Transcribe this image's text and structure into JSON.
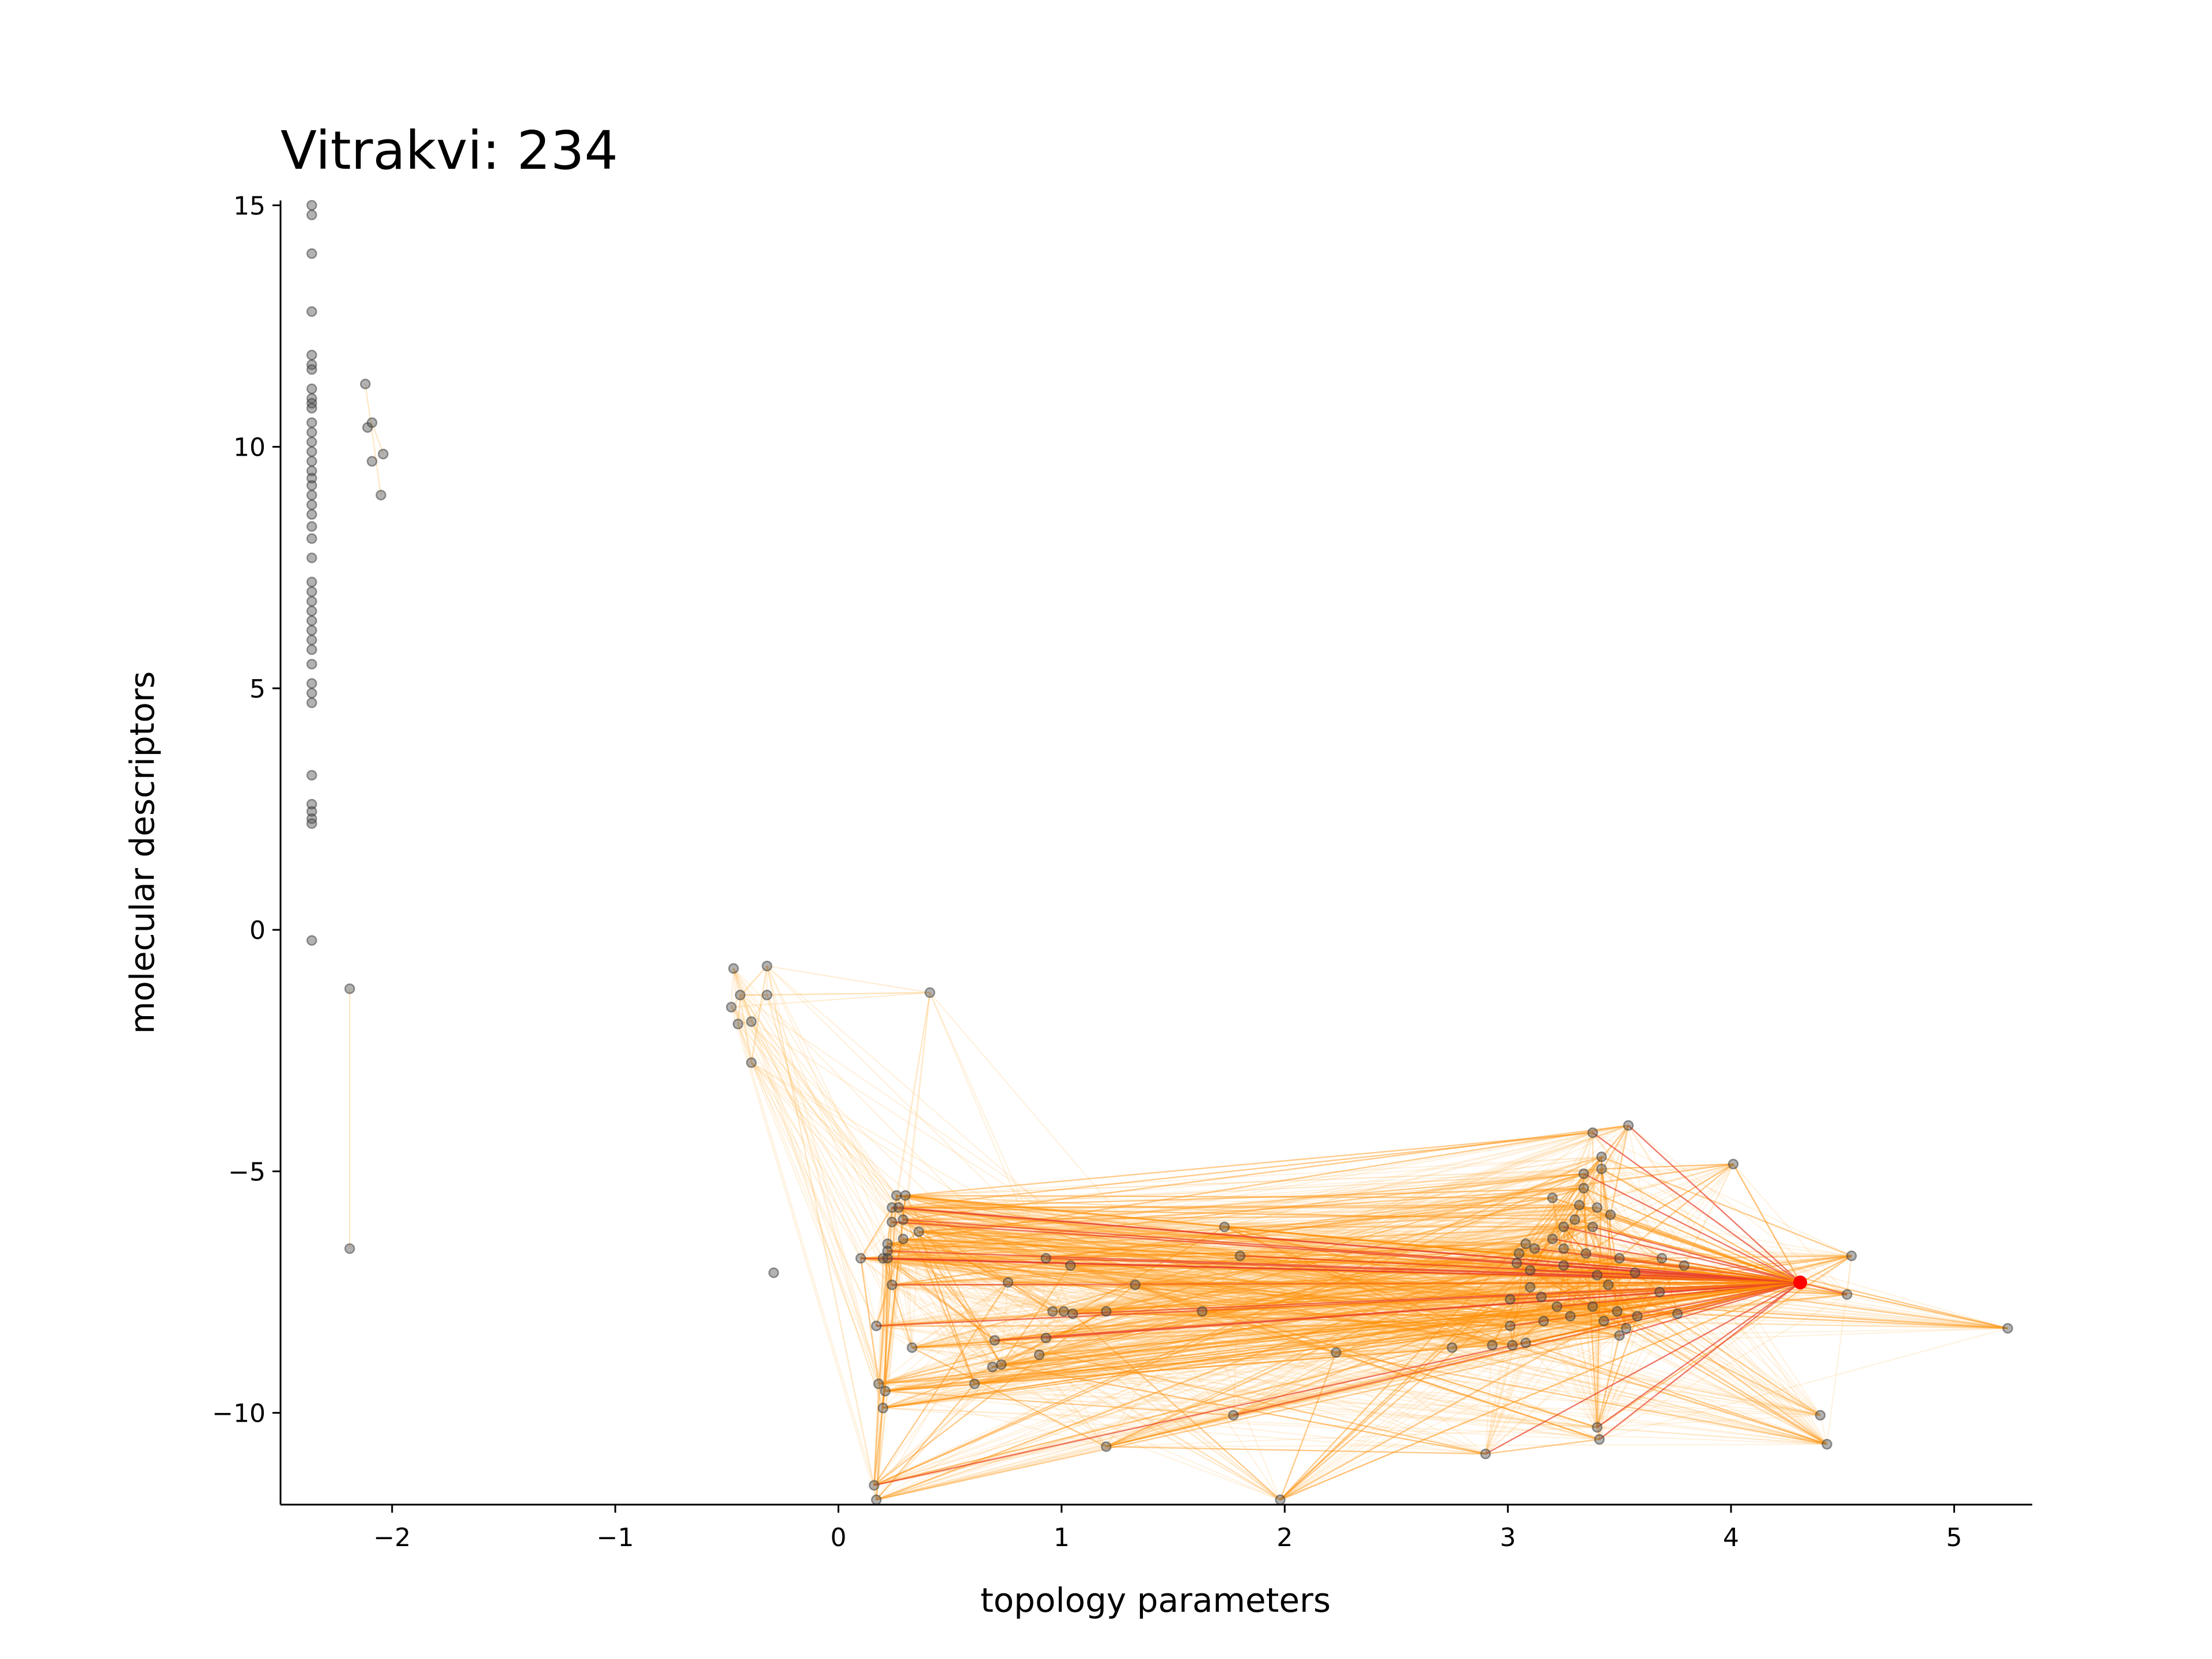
{
  "chart_data": {
    "type": "scatter",
    "title": "Vitrakvi: 234",
    "xlabel": "topology parameters",
    "ylabel": "molecular descriptors",
    "xlim": [
      -2.5,
      5.35
    ],
    "ylim": [
      -11.9,
      15.1
    ],
    "xticks": [
      -2,
      -1,
      0,
      1,
      2,
      3,
      4,
      5
    ],
    "yticks": [
      -10,
      -5,
      0,
      5,
      10,
      15
    ],
    "xtick_labels": [
      "−2",
      "−1",
      "0",
      "1",
      "2",
      "3",
      "4",
      "5"
    ],
    "ytick_labels": [
      "−10",
      "−5",
      "0",
      "5",
      "10",
      "15"
    ],
    "grid": false,
    "colors": {
      "points": "#555555",
      "focus": "#ff0000",
      "edge_strong": "#e8402a",
      "edge_mid": "#ff8c00",
      "edge_weak": "#ffb347"
    },
    "focus_point": {
      "x": 4.31,
      "y": -7.3
    },
    "series": [
      {
        "points": [
          [
            -2.36,
            15.0
          ],
          [
            -2.36,
            14.8
          ],
          [
            -2.36,
            14.0
          ],
          [
            -2.36,
            12.8
          ],
          [
            -2.36,
            11.9
          ],
          [
            -2.36,
            11.7
          ],
          [
            -2.36,
            11.6
          ],
          [
            -2.36,
            11.2
          ],
          [
            -2.36,
            11.0
          ],
          [
            -2.36,
            10.9
          ],
          [
            -2.36,
            10.8
          ],
          [
            -2.36,
            10.5
          ],
          [
            -2.36,
            10.3
          ],
          [
            -2.36,
            10.1
          ],
          [
            -2.36,
            9.9
          ],
          [
            -2.36,
            9.7
          ],
          [
            -2.36,
            9.5
          ],
          [
            -2.36,
            9.35
          ],
          [
            -2.36,
            9.2
          ],
          [
            -2.36,
            9.0
          ],
          [
            -2.36,
            8.8
          ],
          [
            -2.36,
            8.6
          ],
          [
            -2.36,
            8.35
          ],
          [
            -2.36,
            8.1
          ],
          [
            -2.36,
            7.7
          ],
          [
            -2.36,
            7.2
          ],
          [
            -2.36,
            7.0
          ],
          [
            -2.36,
            6.8
          ],
          [
            -2.36,
            6.6
          ],
          [
            -2.36,
            6.4
          ],
          [
            -2.36,
            6.2
          ],
          [
            -2.36,
            6.0
          ],
          [
            -2.36,
            5.8
          ],
          [
            -2.36,
            5.5
          ],
          [
            -2.36,
            5.1
          ],
          [
            -2.36,
            4.9
          ],
          [
            -2.36,
            4.7
          ],
          [
            -2.36,
            3.2
          ],
          [
            -2.36,
            2.6
          ],
          [
            -2.36,
            2.45
          ],
          [
            -2.36,
            2.3
          ],
          [
            -2.36,
            2.2
          ],
          [
            -2.36,
            -0.22
          ],
          [
            -2.12,
            11.3
          ],
          [
            -2.11,
            10.4
          ],
          [
            -2.09,
            10.5
          ],
          [
            -2.09,
            9.7
          ],
          [
            -2.04,
            9.85
          ],
          [
            -2.05,
            9.0
          ],
          [
            -2.19,
            -1.22
          ],
          [
            -2.19,
            -6.6
          ],
          [
            -0.47,
            -0.8
          ],
          [
            -0.32,
            -0.75
          ],
          [
            -0.44,
            -1.35
          ],
          [
            -0.32,
            -1.35
          ],
          [
            -0.48,
            -1.6
          ],
          [
            -0.45,
            -1.95
          ],
          [
            -0.39,
            -1.9
          ],
          [
            -0.39,
            -2.75
          ],
          [
            0.41,
            -1.3
          ],
          [
            -0.29,
            -7.1
          ],
          [
            0.1,
            -6.8
          ],
          [
            0.2,
            -6.8
          ],
          [
            0.26,
            -5.5
          ],
          [
            0.3,
            -5.5
          ],
          [
            0.24,
            -5.75
          ],
          [
            0.27,
            -5.75
          ],
          [
            0.24,
            -6.05
          ],
          [
            0.29,
            -6.0
          ],
          [
            0.36,
            -6.25
          ],
          [
            0.29,
            -6.4
          ],
          [
            0.22,
            -6.5
          ],
          [
            0.22,
            -6.65
          ],
          [
            0.22,
            -6.8
          ],
          [
            0.24,
            -7.35
          ],
          [
            0.17,
            -8.2
          ],
          [
            0.33,
            -8.65
          ],
          [
            0.18,
            -9.4
          ],
          [
            0.21,
            -9.55
          ],
          [
            0.2,
            -9.9
          ],
          [
            0.16,
            -11.5
          ],
          [
            0.17,
            -11.8
          ],
          [
            0.93,
            -6.8
          ],
          [
            1.04,
            -6.95
          ],
          [
            0.76,
            -7.3
          ],
          [
            1.33,
            -7.35
          ],
          [
            0.96,
            -7.9
          ],
          [
            1.01,
            -7.9
          ],
          [
            1.05,
            -7.95
          ],
          [
            1.2,
            -7.9
          ],
          [
            1.63,
            -7.9
          ],
          [
            0.93,
            -8.45
          ],
          [
            0.7,
            -8.5
          ],
          [
            0.73,
            -9.0
          ],
          [
            0.69,
            -9.05
          ],
          [
            0.9,
            -8.8
          ],
          [
            0.61,
            -9.4
          ],
          [
            1.8,
            -6.75
          ],
          [
            1.73,
            -6.15
          ],
          [
            1.77,
            -10.05
          ],
          [
            1.2,
            -10.7
          ],
          [
            1.98,
            -11.8
          ],
          [
            2.23,
            -8.75
          ],
          [
            2.75,
            -8.65
          ],
          [
            2.93,
            -8.6
          ],
          [
            2.9,
            -10.85
          ],
          [
            3.01,
            -8.2
          ],
          [
            3.01,
            -7.65
          ],
          [
            3.02,
            -8.6
          ],
          [
            3.04,
            -6.9
          ],
          [
            3.05,
            -6.7
          ],
          [
            3.08,
            -6.5
          ],
          [
            3.12,
            -6.6
          ],
          [
            3.1,
            -7.05
          ],
          [
            3.1,
            -7.4
          ],
          [
            3.08,
            -8.55
          ],
          [
            3.15,
            -7.6
          ],
          [
            3.16,
            -8.1
          ],
          [
            3.22,
            -7.8
          ],
          [
            3.2,
            -6.4
          ],
          [
            3.25,
            -6.6
          ],
          [
            3.2,
            -5.55
          ],
          [
            3.25,
            -6.95
          ],
          [
            3.28,
            -8.0
          ],
          [
            3.25,
            -6.15
          ],
          [
            3.3,
            -6.0
          ],
          [
            3.32,
            -5.7
          ],
          [
            3.34,
            -5.35
          ],
          [
            3.34,
            -5.05
          ],
          [
            3.35,
            -6.7
          ],
          [
            3.38,
            -6.15
          ],
          [
            3.4,
            -5.75
          ],
          [
            3.4,
            -7.15
          ],
          [
            3.42,
            -4.7
          ],
          [
            3.38,
            -4.2
          ],
          [
            3.42,
            -4.95
          ],
          [
            3.38,
            -7.8
          ],
          [
            3.43,
            -8.1
          ],
          [
            3.45,
            -7.35
          ],
          [
            3.46,
            -5.9
          ],
          [
            3.49,
            -7.9
          ],
          [
            3.5,
            -6.8
          ],
          [
            3.5,
            -8.4
          ],
          [
            3.53,
            -8.25
          ],
          [
            3.54,
            -4.05
          ],
          [
            3.57,
            -7.1
          ],
          [
            3.58,
            -8.0
          ],
          [
            3.68,
            -7.5
          ],
          [
            3.69,
            -6.8
          ],
          [
            3.76,
            -7.95
          ],
          [
            3.79,
            -6.95
          ],
          [
            3.4,
            -10.3
          ],
          [
            3.41,
            -10.55
          ],
          [
            4.01,
            -4.85
          ],
          [
            4.4,
            -10.05
          ],
          [
            4.43,
            -10.65
          ],
          [
            4.52,
            -7.55
          ],
          [
            4.54,
            -6.75
          ],
          [
            5.24,
            -8.25
          ]
        ]
      }
    ]
  }
}
